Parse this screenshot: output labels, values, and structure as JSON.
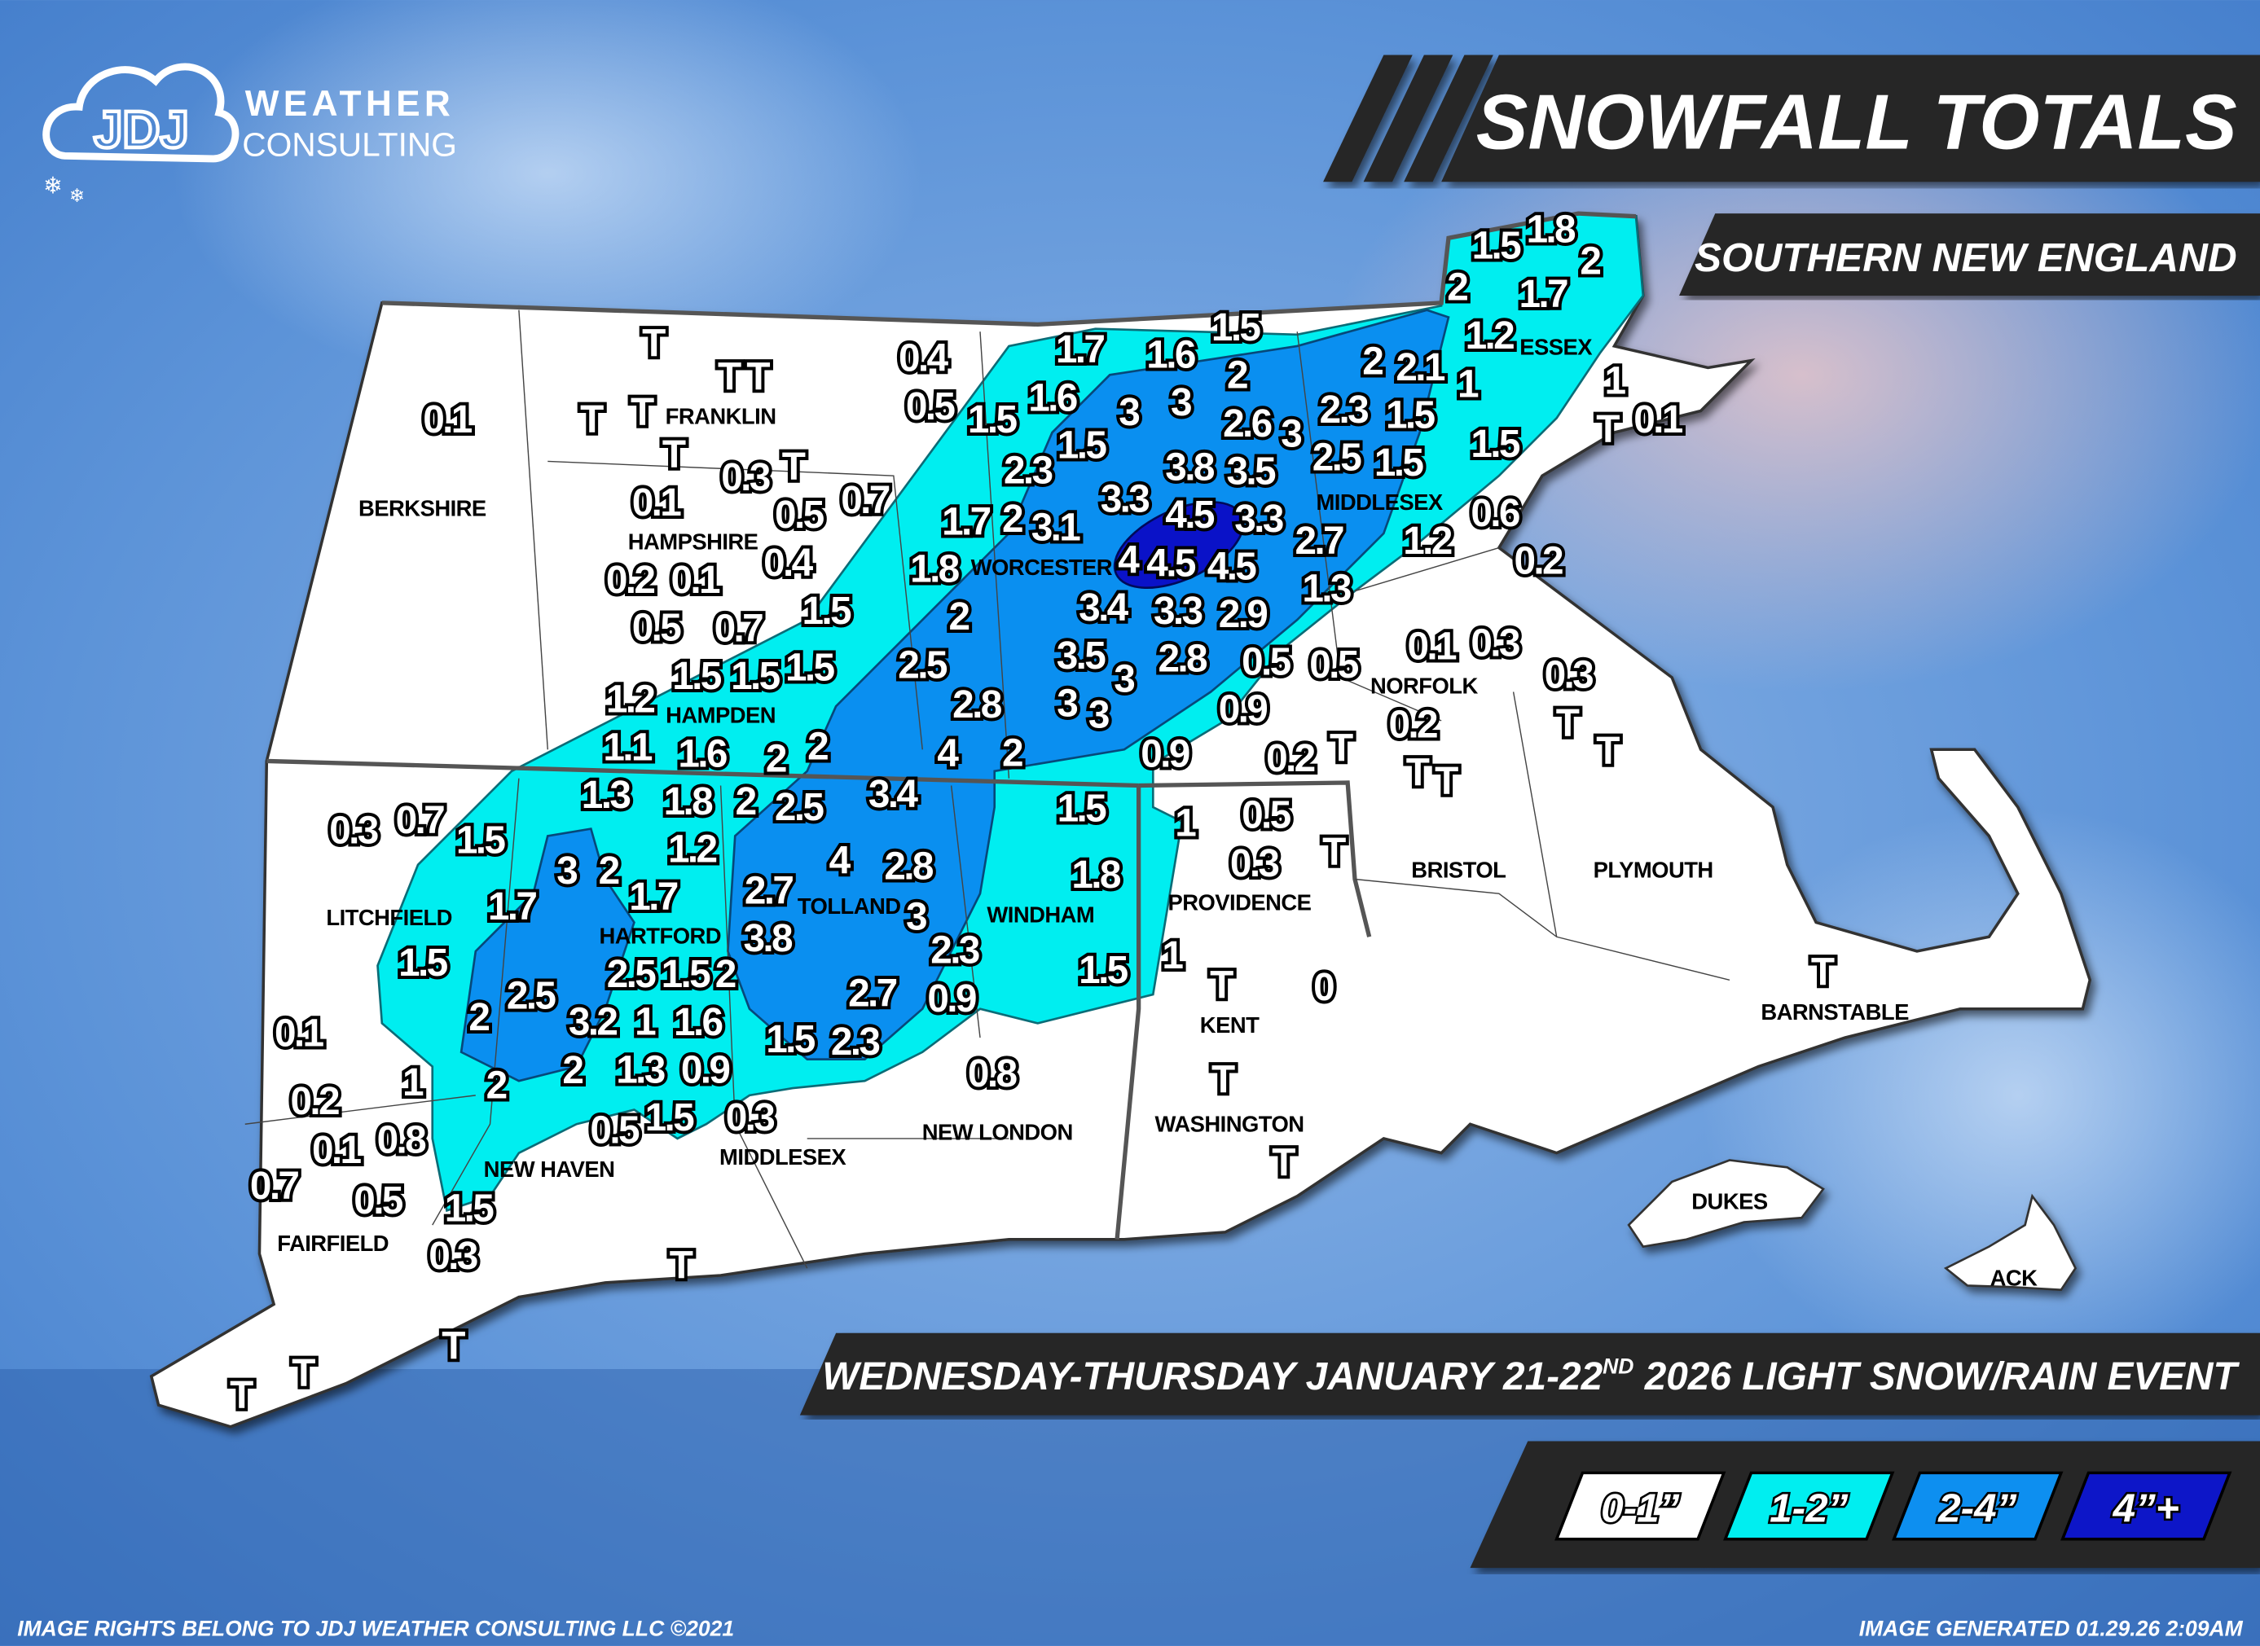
{
  "logo": {
    "monogram": "JDJ",
    "line1": "WEATHER",
    "line2": "CONSULTING"
  },
  "header": {
    "title": "SNOWFALL TOTALS",
    "region": "SOUTHERN NEW ENGLAND"
  },
  "event": {
    "text_a": "WEDNESDAY-THURSDAY JANUARY 21-22",
    "sup": "ND",
    "text_b": " 2026 LIGHT SNOW/RAIN EVENT"
  },
  "legend": [
    {
      "label": "0-1”",
      "color": "#ffffff",
      "text_color": "#ffffff"
    },
    {
      "label": "1-2”",
      "color": "#00eef0",
      "text_color": "#ffffff"
    },
    {
      "label": "2-4”",
      "color": "#0a8ff0",
      "text_color": "#ffffff"
    },
    {
      "label": "4”+",
      "color": "#0a12c8",
      "text_color": "#ffffff"
    }
  ],
  "footer": {
    "rights": "IMAGE RIGHTS BELONG TO JDJ WEATHER CONSULTING LLC ©2021",
    "generated": "IMAGE GENERATED 01.29.26 2:09AM"
  },
  "counties": [
    "BERKSHIRE",
    "FRANKLIN",
    "HAMPSHIRE",
    "HAMPDEN",
    "WORCESTER",
    "MIDDLESEX",
    "ESSEX",
    "NORFOLK",
    "BRISTOL",
    "PLYMOUTH",
    "BARNSTABLE",
    "DUKES",
    "ACK",
    "PROVIDENCE",
    "KENT",
    "WASHINGTON",
    "LITCHFIELD",
    "HARTFORD",
    "TOLLAND",
    "WINDHAM",
    "NEW HAVEN",
    "MIDDLESEX",
    "NEW LONDON",
    "FAIRFIELD"
  ],
  "observations": [
    "T",
    "0.1",
    "T",
    "T",
    "T",
    "T",
    "T",
    "0.3",
    "T",
    "0.5",
    "0.7",
    "0.1",
    "0.4",
    "0.2",
    "0.1",
    "0.5",
    "0.7",
    "1.5",
    "1.5",
    "0.4",
    "0.5",
    "1.5",
    "1.7",
    "1.6",
    "1.5",
    "1.6",
    "1.5",
    "2",
    "3",
    "3",
    "2.6",
    "3",
    "2.3",
    "2",
    "2.1",
    "1",
    "1.5",
    "1.5",
    "2.3",
    "3.3",
    "3.8",
    "3.5",
    "2.5",
    "1.5",
    "1.7",
    "2",
    "3.1",
    "4.5",
    "3.3",
    "2.7",
    "1.2",
    "0.6",
    "1.8",
    "4",
    "4.5",
    "4.5",
    "0.2",
    "1.3",
    "2",
    "3.4",
    "3.3",
    "2.9",
    "2.5",
    "3.5",
    "3",
    "2.8",
    "0.5",
    "0.5",
    "0.1",
    "0.3",
    "0.9",
    "3",
    "3",
    "0.2",
    "0.3",
    "T",
    "T",
    "1.2",
    "1.5",
    "1.5",
    "2.8",
    "1.1",
    "1.6",
    "2",
    "2",
    "4",
    "2",
    "0.9",
    "0.2",
    "T",
    "T",
    "T",
    "1.5",
    "1.8",
    "2",
    "2",
    "1.7",
    "1.2",
    "1",
    "T",
    "0.1",
    "1.3",
    "1.8",
    "2",
    "2.5",
    "3.4",
    "1.5",
    "1",
    "0.5",
    "0.3",
    "0.7",
    "1.5",
    "1.2",
    "3",
    "2",
    "1.7",
    "2.7",
    "4",
    "2.8",
    "1.8",
    "0.3",
    "T",
    "1.7",
    "3",
    "1.5",
    "2.5",
    "2",
    "3.8",
    "2.3",
    "1.5",
    "1",
    "T",
    "0",
    "1.5",
    "2",
    "2.5",
    "3.2",
    "1",
    "1.6",
    "2.7",
    "0.9",
    "0.1",
    "1.5",
    "2.3",
    "1",
    "2",
    "2",
    "1.3",
    "0.9",
    "0.8",
    "T",
    "0.2",
    "1.5",
    "0.3",
    "0.1",
    "0.8",
    "0.5",
    "T",
    "0.7",
    "0.5",
    "1.5",
    "0.3",
    "T",
    "T",
    "T",
    "T",
    "T"
  ]
}
